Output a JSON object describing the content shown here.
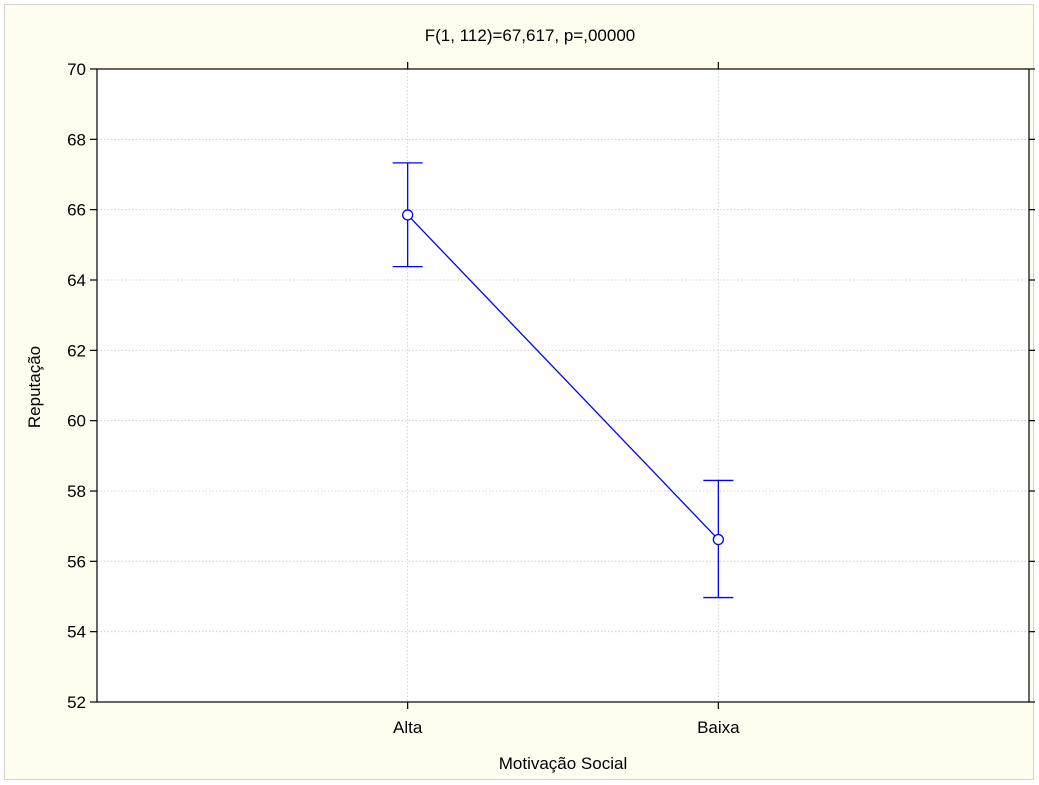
{
  "chart_data": {
    "type": "line",
    "title": "F(1, 112)=67,617, p=,00000",
    "xlabel": "Motivação Social",
    "ylabel": "Reputação",
    "categories": [
      "Alta",
      "Baixa"
    ],
    "series": [
      {
        "values": [
          65.85,
          56.62
        ],
        "error_lower": [
          64.38,
          54.97
        ],
        "error_upper": [
          67.33,
          58.3
        ],
        "color": "#0000ff"
      }
    ],
    "ylim": [
      52,
      70
    ],
    "yticks": [
      "52",
      "54",
      "56",
      "58",
      "60",
      "62",
      "64",
      "66",
      "68",
      "70"
    ],
    "grid": true,
    "grid_style": "dotted",
    "background": "#fffcf0"
  }
}
